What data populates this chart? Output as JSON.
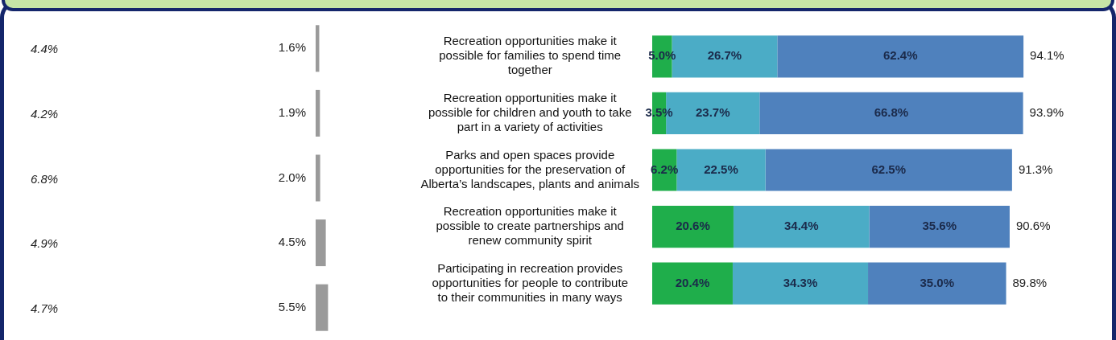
{
  "chart_data": [
    {
      "type": "other",
      "annotations": [
        "4.4%",
        "4.2%",
        "6.8%",
        "4.9%",
        "4.7%"
      ]
    },
    {
      "type": "bar",
      "orientation": "horizontal",
      "categories": [
        null,
        null,
        null,
        null,
        null
      ],
      "values": [
        1.6,
        1.9,
        2.0,
        4.5,
        5.5
      ],
      "color": "#9a9a9a",
      "value_labels": [
        "1.6%",
        "1.9%",
        "2.0%",
        "4.5%",
        "5.5%"
      ],
      "tick_labels": false,
      "legend": false
    },
    {
      "type": "bar",
      "orientation": "horizontal",
      "stacked": true,
      "categories": [
        "Recreation opportunities make it possible for families to spend time together",
        "Recreation opportunities make it possible for children and youth to take part in a variety of activities",
        "Parks and open spaces provide opportunities for the preservation of Alberta’s landscapes, plants and animals",
        "Recreation opportunities make it possible to create partnerships and renew community spirit",
        "Participating in recreation provides opportunities for people to contribute to their communities in many ways"
      ],
      "series": [
        {
          "color": "#1fae4b",
          "values": [
            5.0,
            3.5,
            6.2,
            20.6,
            20.4
          ],
          "value_labels": [
            "5.0%",
            "3.5%",
            "6.2%",
            "20.6%",
            "20.4%"
          ]
        },
        {
          "color": "#4bacc6",
          "values": [
            26.7,
            23.7,
            22.5,
            34.4,
            34.3
          ],
          "value_labels": [
            "26.7%",
            "23.7%",
            "22.5%",
            "34.4%",
            "34.3%"
          ]
        },
        {
          "color": "#4f81bd",
          "values": [
            62.4,
            66.8,
            62.5,
            35.6,
            35.0
          ],
          "value_labels": [
            "62.4%",
            "66.8%",
            "62.5%",
            "35.6%",
            "35.0%"
          ]
        }
      ],
      "totals": [
        "94.1%",
        "93.9%",
        "91.3%",
        "90.6%",
        "89.8%"
      ],
      "tick_labels": "y",
      "legend": false
    }
  ]
}
